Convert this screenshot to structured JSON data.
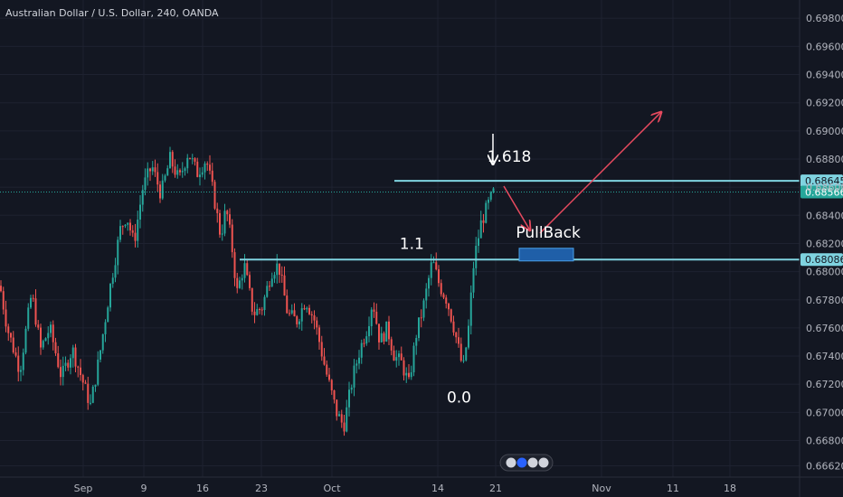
{
  "header": {
    "title": "Australian Dollar / U.S. Dollar, 240, OANDA"
  },
  "colors": {
    "background": "#131722",
    "grid": "#1e2230",
    "up": "#26a69a",
    "down": "#ef5350",
    "level_line": "#7fd3e0",
    "price_tag": "#26a69a",
    "arrow": "#e84a5f",
    "pullback_zone": "#1f5fa8"
  },
  "chart_data": {
    "type": "candlestick",
    "title": "Australian Dollar / U.S. Dollar, 240, OANDA",
    "xlabel": "",
    "ylabel": "",
    "ylim": [
      0.6654,
      0.6993
    ],
    "grid": true,
    "y_ticks": [
      "0.69800",
      "0.69600",
      "0.69400",
      "0.69200",
      "0.69000",
      "0.68800",
      "0.68600",
      "0.68400",
      "0.68200",
      "0.68000",
      "0.67800",
      "0.67600",
      "0.67400",
      "0.67200",
      "0.67000",
      "0.66800",
      "0.66620"
    ],
    "x_ticks": [
      "Sep",
      "9",
      "16",
      "23",
      "Oct",
      "14",
      "21",
      "Nov",
      "11",
      "18"
    ],
    "price_path": [
      [
        0.679,
        0
      ],
      [
        0.676,
        8
      ],
      [
        0.673,
        22
      ],
      [
        0.6785,
        35
      ],
      [
        0.6745,
        45
      ],
      [
        0.676,
        55
      ],
      [
        0.6725,
        68
      ],
      [
        0.6745,
        80
      ],
      [
        0.6705,
        100
      ],
      [
        0.674,
        110
      ],
      [
        0.679,
        122
      ],
      [
        0.683,
        133
      ],
      [
        0.684,
        140
      ],
      [
        0.682,
        148
      ],
      [
        0.686,
        158
      ],
      [
        0.6875,
        168
      ],
      [
        0.6855,
        178
      ],
      [
        0.688,
        188
      ],
      [
        0.6865,
        198
      ],
      [
        0.6885,
        208
      ],
      [
        0.687,
        218
      ],
      [
        0.688,
        228
      ],
      [
        0.6855,
        236
      ],
      [
        0.6825,
        244
      ],
      [
        0.6845,
        250
      ],
      [
        0.682,
        256
      ],
      [
        0.6785,
        262
      ],
      [
        0.6805,
        270
      ],
      [
        0.677,
        280
      ],
      [
        0.6775,
        290
      ],
      [
        0.68,
        300
      ],
      [
        0.6805,
        308
      ],
      [
        0.677,
        318
      ],
      [
        0.6765,
        328
      ],
      [
        0.678,
        338
      ],
      [
        0.6765,
        348
      ],
      [
        0.673,
        360
      ],
      [
        0.67,
        372
      ],
      [
        0.669,
        380
      ],
      [
        0.6725,
        390
      ],
      [
        0.6745,
        398
      ],
      [
        0.676,
        406
      ],
      [
        0.678,
        412
      ],
      [
        0.675,
        420
      ],
      [
        0.676,
        428
      ],
      [
        0.674,
        436
      ],
      [
        0.6735,
        444
      ],
      [
        0.672,
        452
      ],
      [
        0.6755,
        460
      ],
      [
        0.6775,
        468
      ],
      [
        0.6808,
        478
      ],
      [
        0.679,
        486
      ],
      [
        0.678,
        494
      ],
      [
        0.676,
        502
      ],
      [
        0.673,
        512
      ],
      [
        0.676,
        518
      ],
      [
        0.6808,
        524
      ],
      [
        0.6835,
        532
      ],
      [
        0.6848,
        540
      ],
      [
        0.68566,
        546
      ]
    ],
    "levels": [
      {
        "name": "1.618",
        "value": 0.68645,
        "tag": "0.68645"
      },
      {
        "name": "1.1",
        "value": 0.68086,
        "tag": "0.68086"
      }
    ],
    "current_price": {
      "value": 0.68566,
      "tag": "0.68566"
    },
    "pullback_zone": {
      "y_top": 0.68166,
      "y_bottom": 0.68076,
      "label": "PullBack"
    },
    "annotations": [
      {
        "text": "1.618",
        "x": 0.578,
        "y": 0.6878
      },
      {
        "text": "1.1",
        "x": 0.474,
        "y": 0.6816
      },
      {
        "text": "0.0",
        "x": 0.53,
        "y": 0.6707
      },
      {
        "text": "PullBack",
        "x": 0.612,
        "y": 0.6824
      }
    ]
  }
}
